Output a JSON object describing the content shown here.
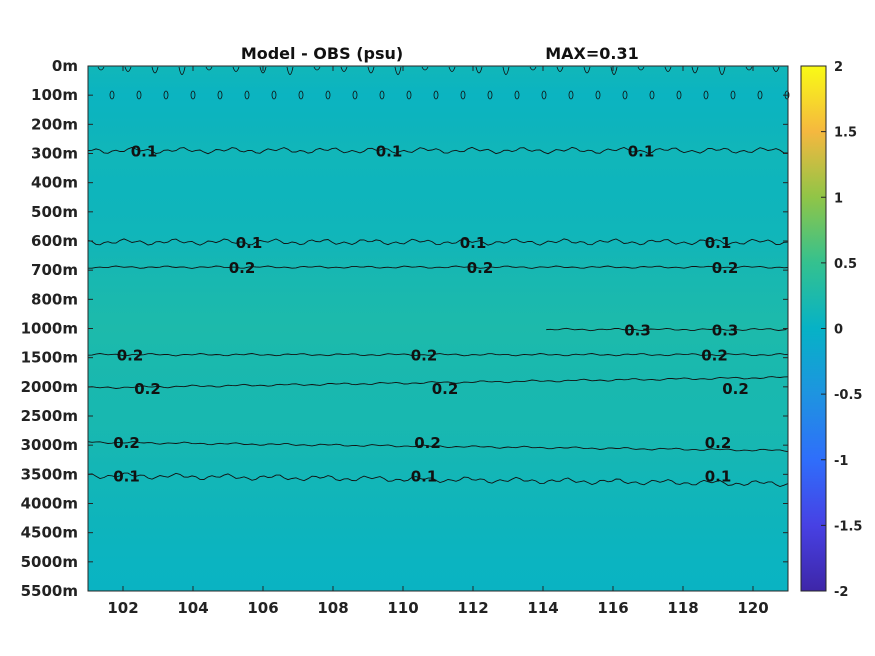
{
  "chart_data": {
    "type": "heatmap",
    "title_left": "Model - OBS (psu)",
    "title_right": "MAX=0.31",
    "x_ticks": [
      "102",
      "104",
      "106",
      "108",
      "110",
      "112",
      "114",
      "116",
      "118",
      "120"
    ],
    "x_tick_values": [
      102,
      104,
      106,
      108,
      110,
      112,
      114,
      116,
      118,
      120
    ],
    "xlim": [
      101,
      121
    ],
    "y_ticks": [
      "0m",
      "100m",
      "200m",
      "300m",
      "400m",
      "500m",
      "600m",
      "700m",
      "800m",
      "1000m",
      "1500m",
      "2000m",
      "2500m",
      "3000m",
      "3500m",
      "4000m",
      "4500m",
      "5000m",
      "5500m"
    ],
    "colorbar": {
      "ticks": [
        "2",
        "1.5",
        "1",
        "0.5",
        "0",
        "-0.5",
        "-1",
        "-1.5",
        "-2"
      ],
      "tick_values": [
        2,
        1.5,
        1,
        0.5,
        0,
        -0.5,
        -1,
        -1.5,
        -2
      ],
      "range": [
        -2,
        2
      ],
      "colormap": "parula"
    },
    "approx_field": {
      "description_levels": [
        0,
        100,
        200,
        300,
        400,
        500,
        600,
        700,
        800,
        1000,
        1500,
        2000,
        2500,
        3000,
        3500,
        4000,
        4500,
        5000,
        5500
      ],
      "values_at_levels": [
        0.12,
        0.05,
        0.08,
        0.12,
        0.09,
        0.1,
        0.12,
        0.18,
        0.22,
        0.25,
        0.22,
        0.21,
        0.2,
        0.18,
        0.14,
        0.11,
        0.08,
        0.05,
        0.04
      ]
    },
    "contours": [
      {
        "level": 0.1,
        "depth": "300m",
        "labels": [
          {
            "x": 102.6,
            "text": "0.1"
          },
          {
            "x": 109.6,
            "text": "0.1"
          },
          {
            "x": 116.8,
            "text": "0.1"
          }
        ]
      },
      {
        "level": 0.1,
        "depth": "600m",
        "labels": [
          {
            "x": 105.6,
            "text": "0.1"
          },
          {
            "x": 112.0,
            "text": "0.1"
          },
          {
            "x": 119.0,
            "text": "0.1"
          }
        ]
      },
      {
        "level": 0.2,
        "depth": "700m",
        "labels": [
          {
            "x": 105.4,
            "text": "0.2"
          },
          {
            "x": 112.2,
            "text": "0.2"
          },
          {
            "x": 119.2,
            "text": "0.2"
          }
        ]
      },
      {
        "level": 0.3,
        "depth": "1000m",
        "labels": [
          {
            "x": 116.7,
            "text": "0.3"
          },
          {
            "x": 119.2,
            "text": "0.3"
          }
        ]
      },
      {
        "level": 0.2,
        "depth": "1500m",
        "labels": [
          {
            "x": 102.2,
            "text": "0.2"
          },
          {
            "x": 110.6,
            "text": "0.2"
          },
          {
            "x": 118.9,
            "text": "0.2"
          }
        ]
      },
      {
        "level": 0.2,
        "depth": "2000m",
        "labels": [
          {
            "x": 102.7,
            "text": "0.2"
          },
          {
            "x": 111.2,
            "text": "0.2"
          },
          {
            "x": 119.5,
            "text": "0.2"
          }
        ]
      },
      {
        "level": 0.2,
        "depth": "3000m",
        "labels": [
          {
            "x": 102.1,
            "text": "0.2"
          },
          {
            "x": 110.7,
            "text": "0.2"
          },
          {
            "x": 119.0,
            "text": "0.2"
          }
        ]
      },
      {
        "level": 0.1,
        "depth": "3500m",
        "labels": [
          {
            "x": 102.1,
            "text": "0.1"
          },
          {
            "x": 110.6,
            "text": "0.1"
          },
          {
            "x": 119.0,
            "text": "0.1"
          }
        ]
      }
    ],
    "grid": false
  }
}
